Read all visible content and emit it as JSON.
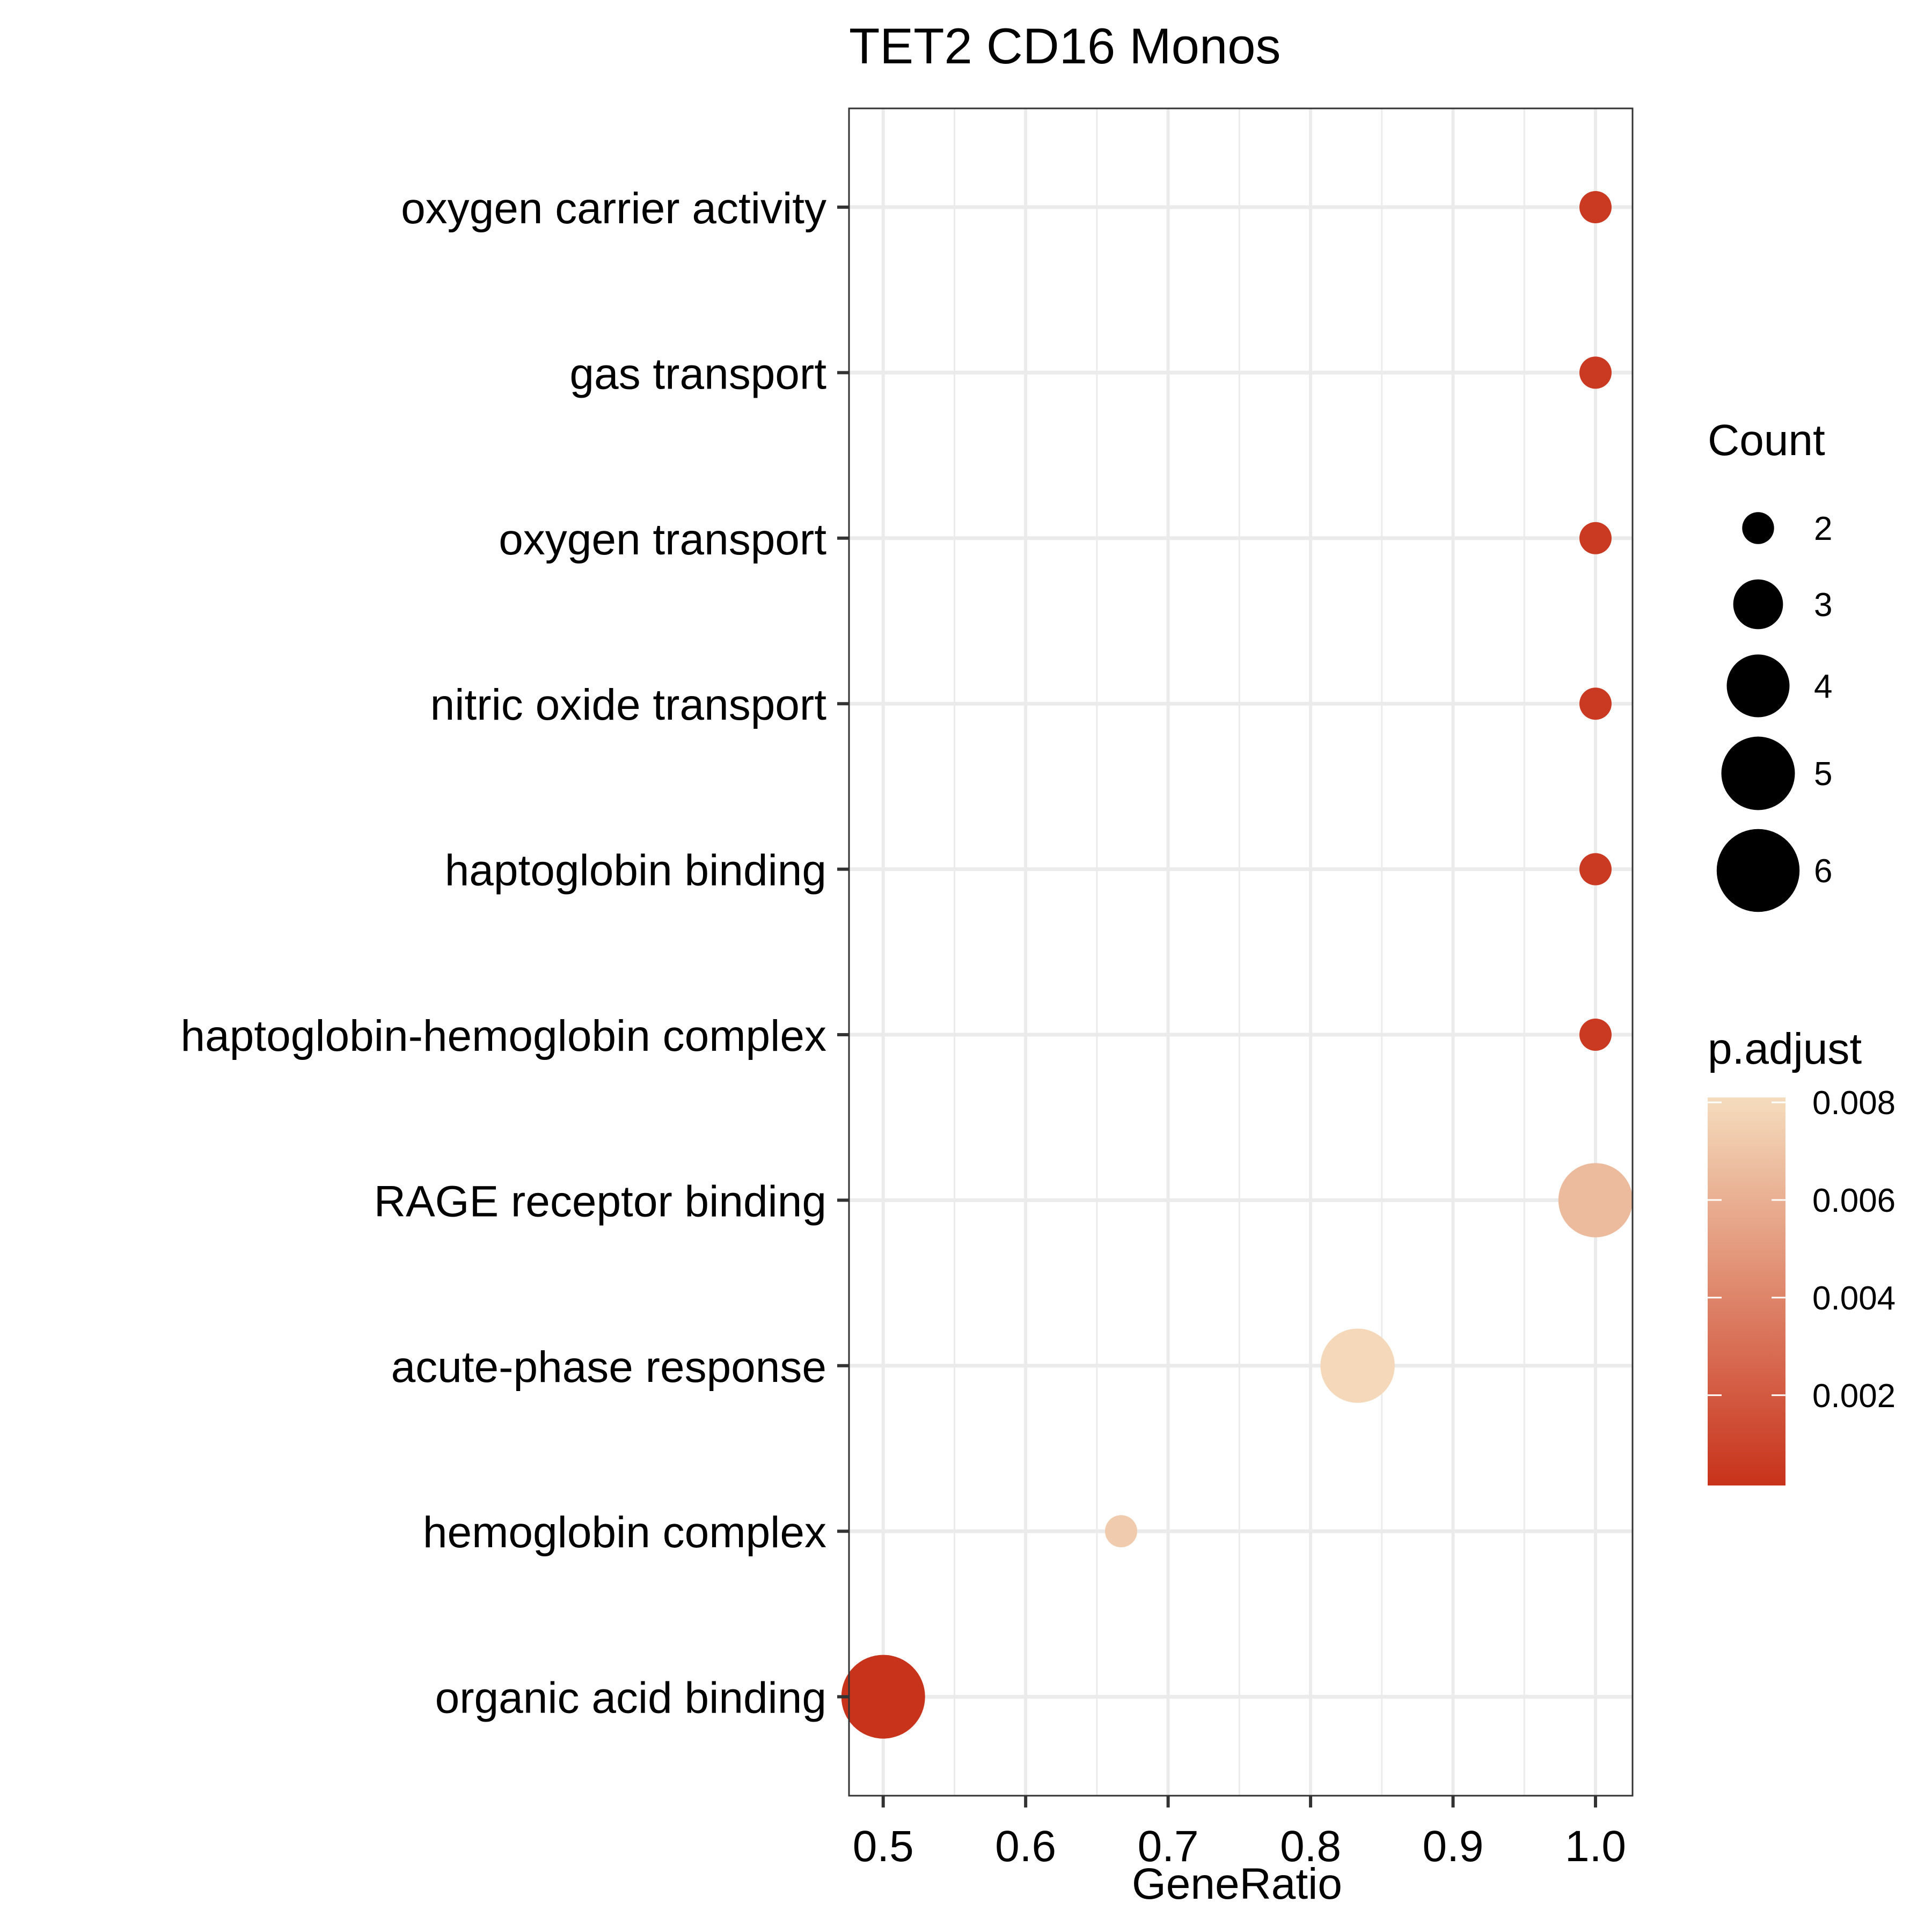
{
  "chart_data": {
    "type": "scatter",
    "title": "TET2 CD16 Monos",
    "xlabel": "GeneRatio",
    "ylabel": "",
    "xlim": [
      0.476,
      1.026
    ],
    "x_ticks": [
      "0.5",
      "0.6",
      "0.7",
      "0.8",
      "0.9",
      "1.0"
    ],
    "categories": [
      "oxygen carrier activity",
      "gas transport",
      "oxygen transport",
      "nitric oxide transport",
      "haptoglobin binding",
      "haptoglobin-hemoglobin complex",
      "RAGE receptor binding",
      "acute-phase response",
      "hemoglobin complex",
      "organic acid binding"
    ],
    "points": [
      {
        "term": "oxygen carrier activity",
        "gene_ratio": 1.0,
        "count": 2,
        "p_adjust": 0.0005
      },
      {
        "term": "gas transport",
        "gene_ratio": 1.0,
        "count": 2,
        "p_adjust": 0.0005
      },
      {
        "term": "oxygen transport",
        "gene_ratio": 1.0,
        "count": 2,
        "p_adjust": 0.0005
      },
      {
        "term": "nitric oxide transport",
        "gene_ratio": 1.0,
        "count": 2,
        "p_adjust": 0.0005
      },
      {
        "term": "haptoglobin binding",
        "gene_ratio": 1.0,
        "count": 2,
        "p_adjust": 0.0005
      },
      {
        "term": "haptoglobin-hemoglobin complex",
        "gene_ratio": 1.0,
        "count": 2,
        "p_adjust": 0.0005
      },
      {
        "term": "RAGE receptor binding",
        "gene_ratio": 1.0,
        "count": 5,
        "p_adjust": 0.0065
      },
      {
        "term": "acute-phase response",
        "gene_ratio": 0.833,
        "count": 5,
        "p_adjust": 0.0079
      },
      {
        "term": "hemoglobin complex",
        "gene_ratio": 0.667,
        "count": 2,
        "p_adjust": 0.0073
      },
      {
        "term": "organic acid binding",
        "gene_ratio": 0.5,
        "count": 6,
        "p_adjust": 0.0002
      }
    ],
    "size_legend": {
      "title": "Count",
      "values": [
        2,
        3,
        4,
        5,
        6
      ],
      "labels": [
        "2",
        "3",
        "4",
        "5",
        "6"
      ]
    },
    "color_legend": {
      "title": "p.adjust",
      "low_color": "#c8321b",
      "high_color": "#f5dcbd",
      "range": [
        0.00015,
        0.0081
      ],
      "tick_values": [
        0.002,
        0.004,
        0.006,
        0.008
      ],
      "tick_labels": [
        "0.002",
        "0.004",
        "0.006",
        "0.008"
      ]
    },
    "grid": true,
    "legend_position": "right"
  }
}
